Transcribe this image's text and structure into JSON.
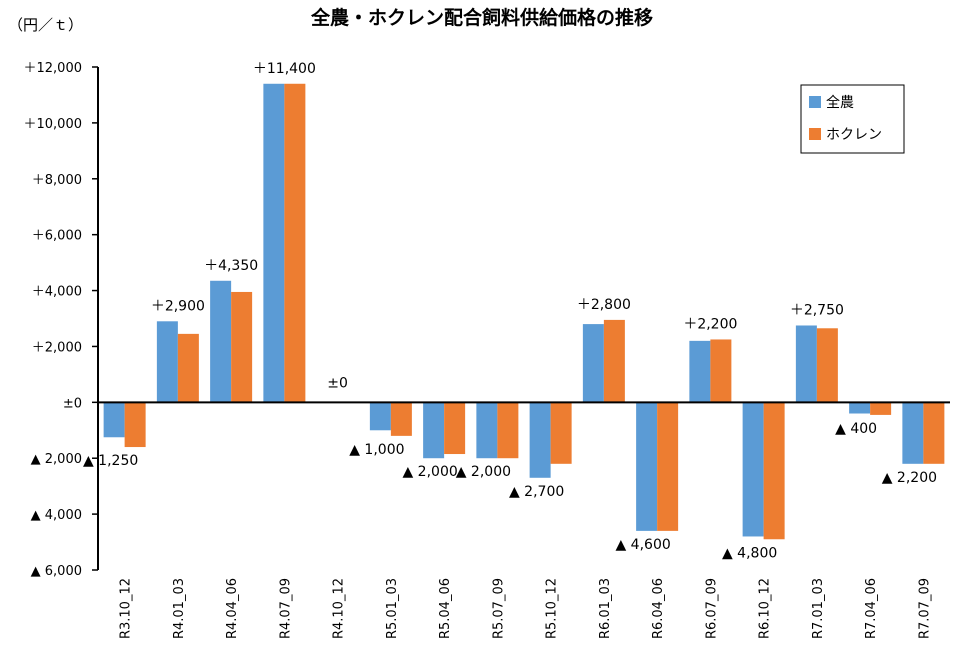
{
  "chart_data": {
    "type": "bar",
    "title": "全農・ホクレン配合飼料供給価格の推移",
    "unit_label": "（円／ｔ）",
    "categories": [
      "R3.10_12",
      "R4.01_03",
      "R4.04_06",
      "R4.07_09",
      "R4.10_12",
      "R5.01_03",
      "R5.04_06",
      "R5.07_09",
      "R5.10_12",
      "R6.01_03",
      "R6.04_06",
      "R6.07_09",
      "R6.10_12",
      "R7.01_03",
      "R7.04_06",
      "R7.07_09"
    ],
    "series": [
      {
        "name": "全農",
        "color": "#5B9BD5",
        "values": [
          -1250,
          2900,
          4350,
          11400,
          0,
          -1000,
          -2000,
          -2000,
          -2700,
          2800,
          -4600,
          2200,
          -4800,
          2750,
          -400,
          -2200
        ]
      },
      {
        "name": "ホクレン",
        "color": "#ED7D31",
        "values": [
          -1600,
          2450,
          3950,
          11400,
          0,
          -1200,
          -1850,
          -2000,
          -2200,
          2950,
          -4600,
          2250,
          -4900,
          2650,
          -450,
          -2200
        ]
      }
    ],
    "data_labels": [
      "▲ 1,250",
      "＋2,900",
      "＋4,350",
      "＋11,400",
      "±0",
      "▲ 1,000",
      "▲ 2,000",
      "▲ 2,000",
      "▲ 2,700",
      "＋2,800",
      "▲ 4,600",
      "＋2,200",
      "▲ 4,800",
      "＋2,750",
      "▲ 400",
      "▲ 2,200"
    ],
    "yticks": [
      12000,
      10000,
      8000,
      6000,
      4000,
      2000,
      0,
      -2000,
      -4000,
      -6000
    ],
    "ytick_labels": [
      "＋12,000",
      "＋10,000",
      "＋8,000",
      "＋6,000",
      "＋4,000",
      "＋2,000",
      "±0",
      "▲ 2,000",
      "▲ 4,000",
      "▲ 6,000"
    ],
    "ylim": [
      -6000,
      12000
    ],
    "grid": false,
    "legend_position": "top-right"
  }
}
